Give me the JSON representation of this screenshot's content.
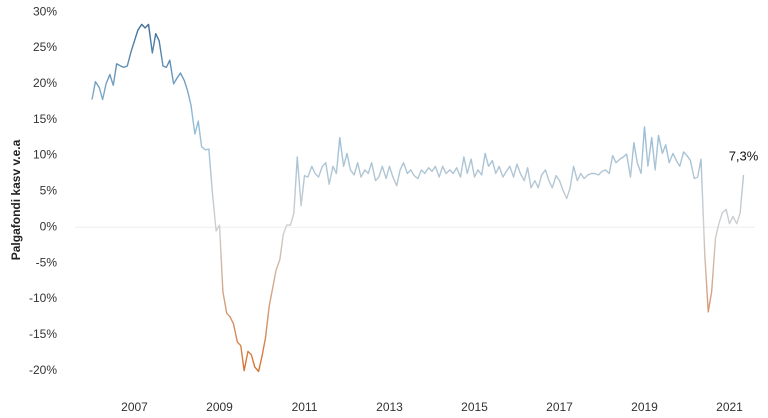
{
  "chart_data": {
    "type": "line",
    "y_label": "Palgafondi kasv v.e.a",
    "end_label": "7,3%",
    "zero_line": true,
    "colors": {
      "high": "#2c5b87",
      "low": "#8fbcd9",
      "zero": "#cfcfcf",
      "negative": "#d9691f"
    },
    "xlim": [
      2005.6,
      2021.6
    ],
    "xticks": [
      2007,
      2009,
      2011,
      2013,
      2015,
      2017,
      2019,
      2021
    ],
    "ylim": [
      -22,
      31
    ],
    "yticks": [
      {
        "value": 30,
        "label": "30%"
      },
      {
        "value": 25,
        "label": "25%"
      },
      {
        "value": 20,
        "label": "20%"
      },
      {
        "value": 15,
        "label": "15%"
      },
      {
        "value": 10,
        "label": "10%"
      },
      {
        "value": 5,
        "label": "5%"
      },
      {
        "value": 0,
        "label": "0%"
      },
      {
        "value": -5,
        "label": "-5%"
      },
      {
        "value": -10,
        "label": "-10%"
      },
      {
        "value": -15,
        "label": "-15%"
      },
      {
        "value": -20,
        "label": "-20%"
      }
    ],
    "x": [
      2006.0,
      2006.08,
      2006.17,
      2006.25,
      2006.33,
      2006.42,
      2006.5,
      2006.58,
      2006.67,
      2006.75,
      2006.83,
      2006.92,
      2007.0,
      2007.08,
      2007.17,
      2007.25,
      2007.33,
      2007.42,
      2007.5,
      2007.58,
      2007.67,
      2007.75,
      2007.83,
      2007.92,
      2008.0,
      2008.08,
      2008.17,
      2008.25,
      2008.33,
      2008.42,
      2008.5,
      2008.58,
      2008.67,
      2008.75,
      2008.83,
      2008.92,
      2009.0,
      2009.08,
      2009.17,
      2009.25,
      2009.33,
      2009.42,
      2009.5,
      2009.58,
      2009.67,
      2009.75,
      2009.83,
      2009.92,
      2010.0,
      2010.08,
      2010.17,
      2010.25,
      2010.33,
      2010.42,
      2010.5,
      2010.58,
      2010.67,
      2010.75,
      2010.83,
      2010.92,
      2011.0,
      2011.08,
      2011.17,
      2011.25,
      2011.33,
      2011.42,
      2011.5,
      2011.58,
      2011.67,
      2011.75,
      2011.83,
      2011.92,
      2012.0,
      2012.08,
      2012.17,
      2012.25,
      2012.33,
      2012.42,
      2012.5,
      2012.58,
      2012.67,
      2012.75,
      2012.83,
      2012.92,
      2013.0,
      2013.08,
      2013.17,
      2013.25,
      2013.33,
      2013.42,
      2013.5,
      2013.58,
      2013.67,
      2013.75,
      2013.83,
      2013.92,
      2014.0,
      2014.08,
      2014.17,
      2014.25,
      2014.33,
      2014.42,
      2014.5,
      2014.58,
      2014.67,
      2014.75,
      2014.83,
      2014.92,
      2015.0,
      2015.08,
      2015.17,
      2015.25,
      2015.33,
      2015.42,
      2015.5,
      2015.58,
      2015.67,
      2015.75,
      2015.83,
      2015.92,
      2016.0,
      2016.08,
      2016.17,
      2016.25,
      2016.33,
      2016.42,
      2016.5,
      2016.58,
      2016.67,
      2016.75,
      2016.83,
      2016.92,
      2017.0,
      2017.08,
      2017.17,
      2017.25,
      2017.33,
      2017.42,
      2017.5,
      2017.58,
      2017.67,
      2017.75,
      2017.83,
      2017.92,
      2018.0,
      2018.08,
      2018.17,
      2018.25,
      2018.33,
      2018.42,
      2018.5,
      2018.58,
      2018.67,
      2018.75,
      2018.83,
      2018.92,
      2019.0,
      2019.08,
      2019.17,
      2019.25,
      2019.33,
      2019.42,
      2019.5,
      2019.58,
      2019.67,
      2019.75,
      2019.83,
      2019.92,
      2020.0,
      2020.08,
      2020.17,
      2020.25,
      2020.33,
      2020.42,
      2020.5,
      2020.58,
      2020.67,
      2020.75,
      2020.83,
      2020.92,
      2021.0,
      2021.08,
      2021.17,
      2021.25,
      2021.33
    ],
    "values": [
      17.8,
      20.3,
      19.5,
      17.8,
      20,
      21.3,
      19.8,
      22.8,
      22.5,
      22.3,
      22.5,
      24.5,
      26,
      27.5,
      28.3,
      27.8,
      28.3,
      24.3,
      27,
      26,
      22.5,
      22.3,
      23.3,
      20,
      20.8,
      21.5,
      20.5,
      19,
      17,
      13,
      14.8,
      11.2,
      10.8,
      10.9,
      5,
      -0.5,
      0.3,
      -9,
      -12,
      -12.5,
      -13.5,
      -16,
      -16.5,
      -20,
      -17.3,
      -17.8,
      -19.5,
      -20.1,
      -18,
      -15.5,
      -11,
      -8.5,
      -6,
      -4.5,
      -1,
      0.3,
      0.3,
      2,
      9.8,
      3,
      7.2,
      7,
      8.5,
      7.5,
      7,
      8.5,
      9,
      6,
      8.5,
      7.5,
      12.5,
      8.5,
      10.3,
      8,
      7.3,
      9,
      7,
      8,
      7.5,
      9,
      6.5,
      7,
      8.5,
      6.8,
      8.5,
      7,
      5.8,
      8,
      9,
      7.5,
      8,
      7.2,
      6.8,
      8,
      7.5,
      8.3,
      7.8,
      8.5,
      7,
      8.5,
      7.5,
      8,
      7.5,
      8.3,
      7,
      9.8,
      7.5,
      9.5,
      7,
      8,
      7.3,
      10.3,
      8.5,
      9.3,
      7.5,
      8.5,
      7,
      7.8,
      8.5,
      7,
      8.8,
      7.5,
      6.5,
      8.3,
      5.5,
      6.5,
      5.5,
      7.3,
      8,
      6.5,
      5.5,
      7.2,
      6.5,
      5.2,
      4,
      5.5,
      8.5,
      6.5,
      7.5,
      6.8,
      7.3,
      7.5,
      7.5,
      7.3,
      7.8,
      8,
      7.5,
      10,
      9,
      9.5,
      9.8,
      10.2,
      7,
      11.8,
      9,
      7.5,
      14,
      8.5,
      12.5,
      8,
      12.8,
      10.3,
      11.5,
      9,
      10.3,
      9.3,
      8.5,
      10.5,
      10,
      9.3,
      6.8,
      7,
      9.5,
      -4,
      -11.8,
      -9,
      -1.5,
      0.5,
      2,
      2.5,
      0.5,
      1.5,
      0.5,
      2,
      7.3
    ]
  }
}
